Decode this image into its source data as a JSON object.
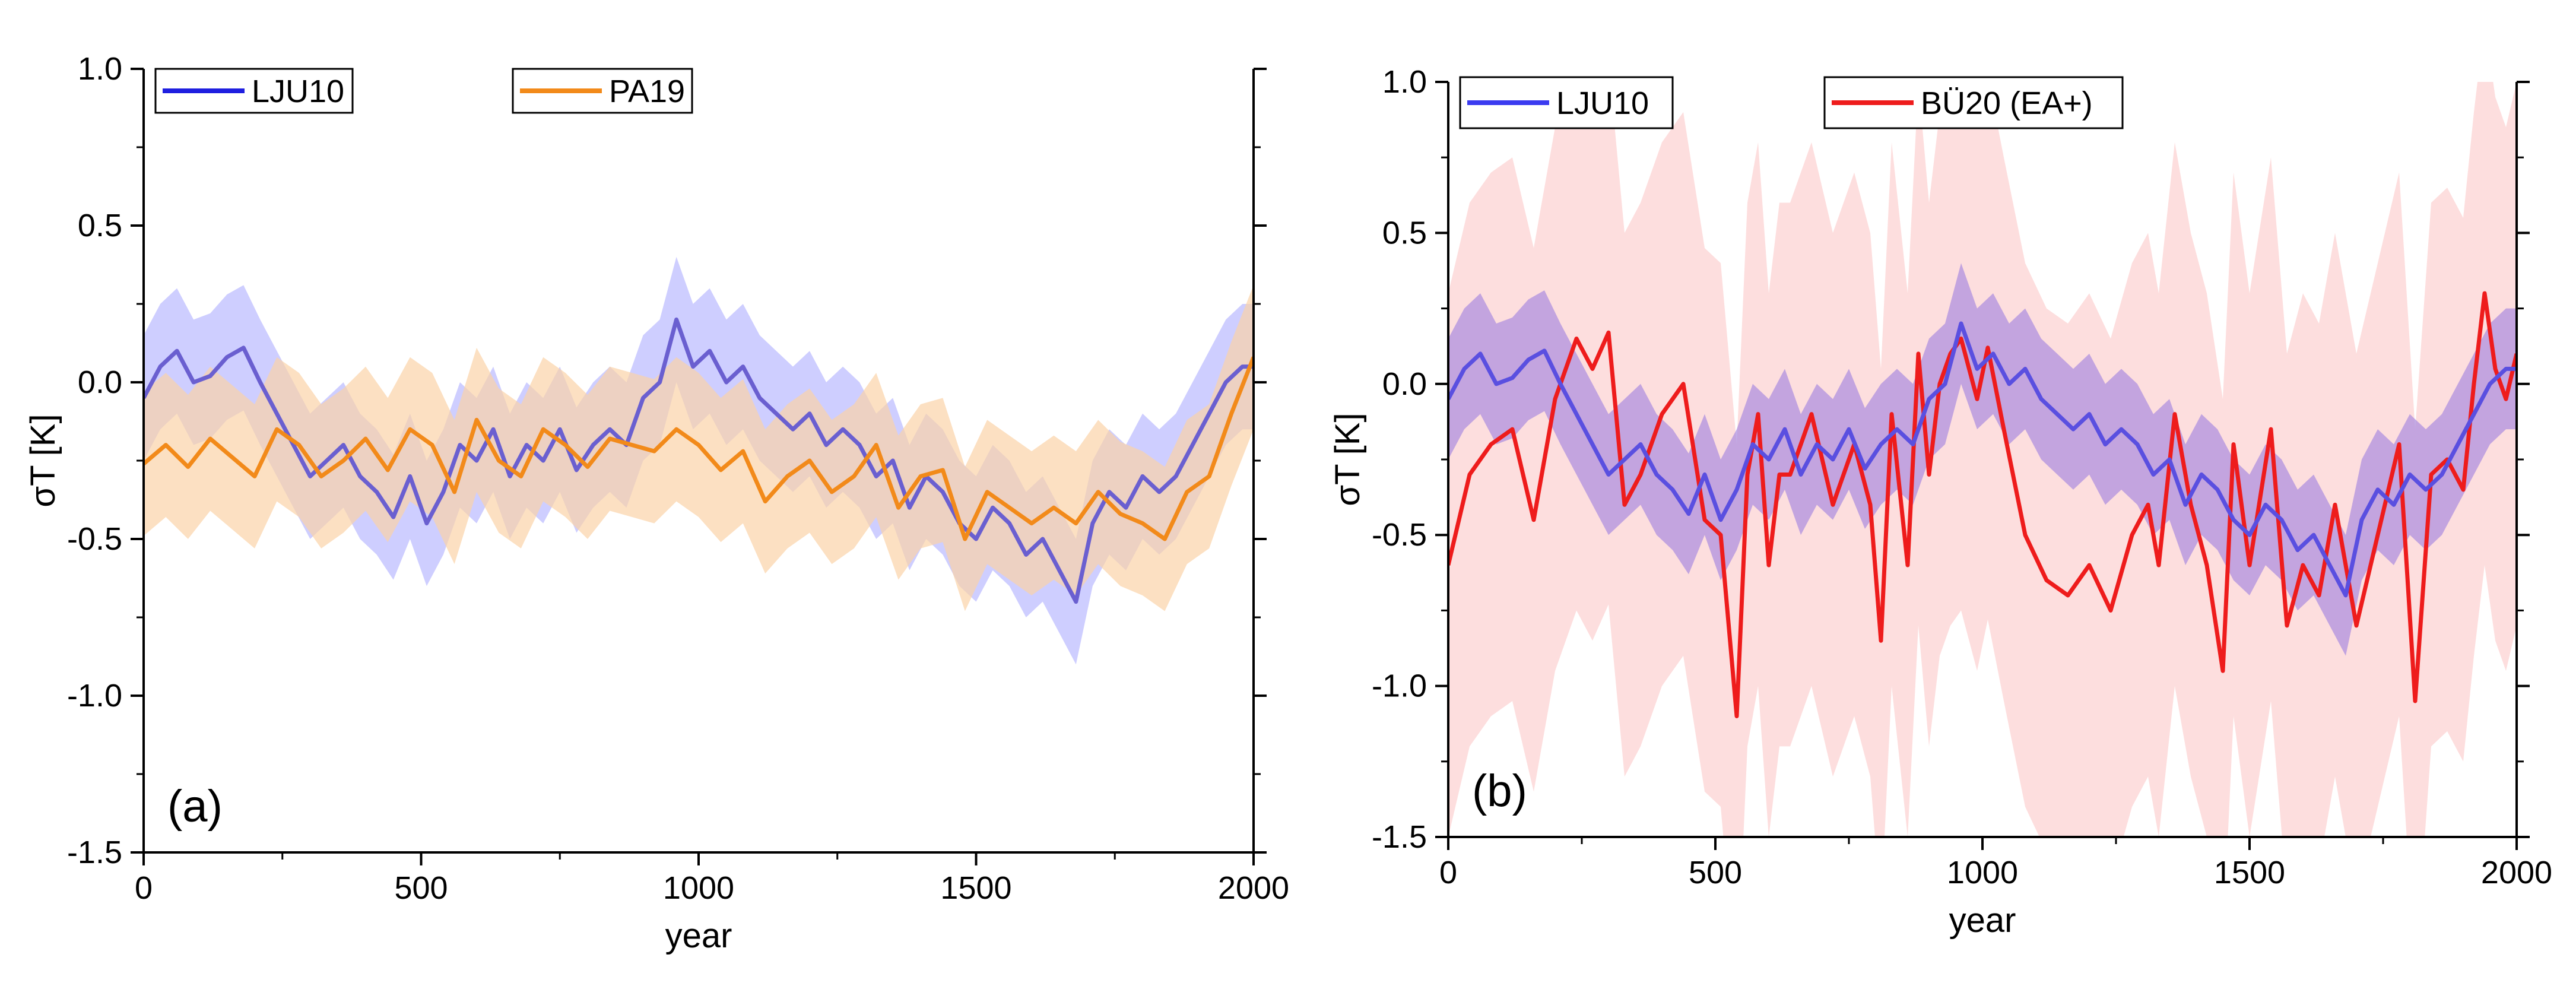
{
  "chart_data": [
    {
      "id": "a",
      "type": "line",
      "panel_label": "(a)",
      "xlabel": "year",
      "ylabel": "σT [K]",
      "xlim": [
        0,
        2000
      ],
      "ylim": [
        -1.5,
        1.0
      ],
      "xticks": [
        0,
        500,
        1000,
        1500,
        2000
      ],
      "yticks": [
        -1.5,
        -1.0,
        -0.5,
        0.0,
        0.5,
        1.0
      ],
      "xtick_labels": [
        "0",
        "500",
        "1000",
        "1500",
        "2000"
      ],
      "ytick_labels": [
        "-1.5",
        "-1.0",
        "-0.5",
        "0.0",
        "0.5",
        "1.0"
      ],
      "legend": [
        {
          "label": "LJU10",
          "color": "#1f1fe0",
          "position": "top-left"
        },
        {
          "label": "PA19",
          "color": "#f28a1a",
          "position": "top-center"
        }
      ],
      "series": [
        {
          "name": "LJU10",
          "color": "#6a5fd0",
          "band_color": "#b9b9ff",
          "band_halfwidth": 0.2,
          "x": [
            0,
            30,
            60,
            90,
            120,
            150,
            180,
            210,
            240,
            270,
            300,
            330,
            360,
            390,
            420,
            450,
            480,
            510,
            540,
            570,
            600,
            630,
            660,
            690,
            720,
            750,
            780,
            810,
            840,
            870,
            900,
            930,
            960,
            990,
            1020,
            1050,
            1080,
            1110,
            1140,
            1170,
            1200,
            1230,
            1260,
            1290,
            1320,
            1350,
            1380,
            1410,
            1440,
            1470,
            1500,
            1530,
            1560,
            1590,
            1620,
            1650,
            1680,
            1710,
            1740,
            1770,
            1800,
            1830,
            1860,
            1890,
            1920,
            1950,
            1980,
            2000
          ],
          "values": [
            -0.05,
            0.05,
            0.1,
            0.0,
            0.02,
            0.08,
            0.11,
            0.0,
            -0.1,
            -0.2,
            -0.3,
            -0.25,
            -0.2,
            -0.3,
            -0.35,
            -0.43,
            -0.3,
            -0.45,
            -0.35,
            -0.2,
            -0.25,
            -0.15,
            -0.3,
            -0.2,
            -0.25,
            -0.15,
            -0.28,
            -0.2,
            -0.15,
            -0.2,
            -0.05,
            0.0,
            0.2,
            0.05,
            0.1,
            0.0,
            0.05,
            -0.05,
            -0.1,
            -0.15,
            -0.1,
            -0.2,
            -0.15,
            -0.2,
            -0.3,
            -0.25,
            -0.4,
            -0.3,
            -0.35,
            -0.45,
            -0.5,
            -0.4,
            -0.45,
            -0.55,
            -0.5,
            -0.6,
            -0.7,
            -0.45,
            -0.35,
            -0.4,
            -0.3,
            -0.35,
            -0.3,
            -0.2,
            -0.1,
            0.0,
            0.05,
            0.05
          ]
        },
        {
          "name": "PA19",
          "color": "#f28a1a",
          "band_color": "#fbd3a8",
          "band_halfwidth": 0.23,
          "x": [
            0,
            40,
            80,
            120,
            160,
            200,
            240,
            280,
            320,
            360,
            400,
            440,
            480,
            520,
            560,
            600,
            640,
            680,
            720,
            760,
            800,
            840,
            880,
            920,
            960,
            1000,
            1040,
            1080,
            1120,
            1160,
            1200,
            1240,
            1280,
            1320,
            1360,
            1400,
            1440,
            1480,
            1520,
            1560,
            1600,
            1640,
            1680,
            1720,
            1760,
            1800,
            1840,
            1880,
            1920,
            1960,
            2000
          ],
          "values": [
            -0.26,
            -0.2,
            -0.27,
            -0.18,
            -0.24,
            -0.3,
            -0.15,
            -0.2,
            -0.3,
            -0.25,
            -0.18,
            -0.28,
            -0.15,
            -0.2,
            -0.35,
            -0.12,
            -0.25,
            -0.3,
            -0.15,
            -0.2,
            -0.27,
            -0.18,
            -0.2,
            -0.22,
            -0.15,
            -0.2,
            -0.28,
            -0.22,
            -0.38,
            -0.3,
            -0.25,
            -0.35,
            -0.3,
            -0.2,
            -0.4,
            -0.3,
            -0.28,
            -0.5,
            -0.35,
            -0.4,
            -0.45,
            -0.4,
            -0.45,
            -0.35,
            -0.42,
            -0.45,
            -0.5,
            -0.35,
            -0.3,
            -0.1,
            0.08
          ]
        }
      ]
    },
    {
      "id": "b",
      "type": "line",
      "panel_label": "(b)",
      "xlabel": "year",
      "ylabel": "σT [K]",
      "xlim": [
        0,
        2000
      ],
      "ylim": [
        -1.5,
        1.0
      ],
      "xticks": [
        0,
        500,
        1000,
        1500,
        2000
      ],
      "yticks": [
        -1.5,
        -1.0,
        -0.5,
        0.0,
        0.5,
        1.0
      ],
      "xtick_labels": [
        "0",
        "500",
        "1000",
        "1500",
        "2000"
      ],
      "ytick_labels": [
        "-1.5",
        "-1.0",
        "-0.5",
        "0.0",
        "0.5",
        "1.0"
      ],
      "legend": [
        {
          "label": "LJU10",
          "color": "#3b3bf0",
          "position": "top-left"
        },
        {
          "label": "BÜ20 (EA+)",
          "color": "#ee1c1c",
          "position": "top-center"
        }
      ],
      "series": [
        {
          "name": "BÜ20 (EA+)",
          "color": "#ee1c1c",
          "band_color": "#fcd0d0",
          "band_halfwidth": 0.9,
          "x": [
            0,
            40,
            80,
            120,
            160,
            200,
            240,
            270,
            300,
            330,
            360,
            400,
            440,
            480,
            510,
            540,
            560,
            580,
            600,
            620,
            640,
            680,
            720,
            760,
            790,
            810,
            830,
            860,
            880,
            900,
            920,
            940,
            960,
            990,
            1010,
            1040,
            1080,
            1120,
            1160,
            1200,
            1240,
            1280,
            1310,
            1330,
            1360,
            1390,
            1420,
            1450,
            1470,
            1500,
            1540,
            1570,
            1600,
            1630,
            1660,
            1700,
            1740,
            1780,
            1810,
            1840,
            1870,
            1900,
            1920,
            1940,
            1960,
            1980,
            2000
          ],
          "values": [
            -0.6,
            -0.3,
            -0.2,
            -0.15,
            -0.45,
            -0.05,
            0.15,
            0.05,
            0.17,
            -0.4,
            -0.3,
            -0.1,
            0.0,
            -0.45,
            -0.5,
            -1.1,
            -0.3,
            -0.1,
            -0.6,
            -0.3,
            -0.3,
            -0.1,
            -0.4,
            -0.2,
            -0.4,
            -0.85,
            -0.1,
            -0.6,
            0.1,
            -0.3,
            0.0,
            0.1,
            0.15,
            -0.05,
            0.12,
            -0.15,
            -0.5,
            -0.65,
            -0.7,
            -0.6,
            -0.75,
            -0.5,
            -0.4,
            -0.6,
            -0.1,
            -0.4,
            -0.6,
            -0.95,
            -0.2,
            -0.6,
            -0.15,
            -0.8,
            -0.6,
            -0.7,
            -0.4,
            -0.8,
            -0.5,
            -0.2,
            -1.05,
            -0.3,
            -0.25,
            -0.35,
            0.0,
            0.3,
            0.05,
            -0.05,
            0.1
          ]
        },
        {
          "name": "LJU10",
          "color": "#5a4fe0",
          "band_color": "#a98ce0",
          "band_halfwidth": 0.2,
          "x": [
            0,
            30,
            60,
            90,
            120,
            150,
            180,
            210,
            240,
            270,
            300,
            330,
            360,
            390,
            420,
            450,
            480,
            510,
            540,
            570,
            600,
            630,
            660,
            690,
            720,
            750,
            780,
            810,
            840,
            870,
            900,
            930,
            960,
            990,
            1020,
            1050,
            1080,
            1110,
            1140,
            1170,
            1200,
            1230,
            1260,
            1290,
            1320,
            1350,
            1380,
            1410,
            1440,
            1470,
            1500,
            1530,
            1560,
            1590,
            1620,
            1650,
            1680,
            1710,
            1740,
            1770,
            1800,
            1830,
            1860,
            1890,
            1920,
            1950,
            1980,
            2000
          ],
          "values": [
            -0.05,
            0.05,
            0.1,
            0.0,
            0.02,
            0.08,
            0.11,
            0.0,
            -0.1,
            -0.2,
            -0.3,
            -0.25,
            -0.2,
            -0.3,
            -0.35,
            -0.43,
            -0.3,
            -0.45,
            -0.35,
            -0.2,
            -0.25,
            -0.15,
            -0.3,
            -0.2,
            -0.25,
            -0.15,
            -0.28,
            -0.2,
            -0.15,
            -0.2,
            -0.05,
            0.0,
            0.2,
            0.05,
            0.1,
            0.0,
            0.05,
            -0.05,
            -0.1,
            -0.15,
            -0.1,
            -0.2,
            -0.15,
            -0.2,
            -0.3,
            -0.25,
            -0.4,
            -0.3,
            -0.35,
            -0.45,
            -0.5,
            -0.4,
            -0.45,
            -0.55,
            -0.5,
            -0.6,
            -0.7,
            -0.45,
            -0.35,
            -0.4,
            -0.3,
            -0.35,
            -0.3,
            -0.2,
            -0.1,
            0.0,
            0.05,
            0.05
          ]
        }
      ]
    }
  ]
}
